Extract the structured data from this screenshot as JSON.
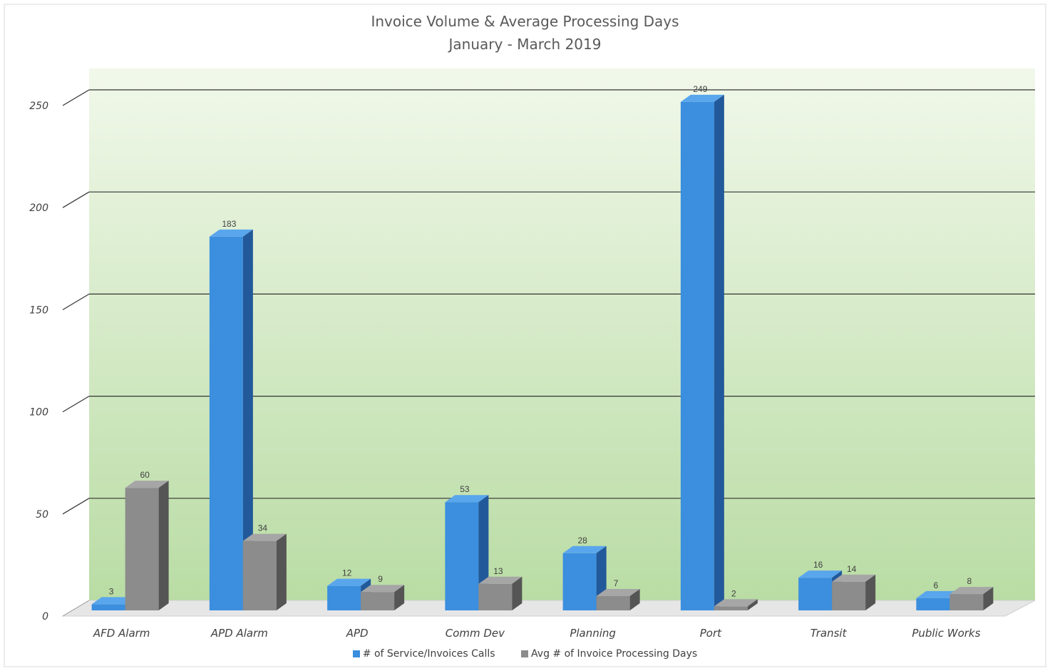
{
  "chart_data": {
    "type": "bar",
    "title": "Invoice Volume & Average Processing Days",
    "subtitle": "January  - March 2019",
    "categories": [
      "AFD Alarm",
      "APD Alarm",
      "APD",
      "Comm Dev",
      "Planning",
      "Port",
      "Transit",
      "Public Works"
    ],
    "series": [
      {
        "name": "# of Service/Invoices Calls",
        "values": [
          3,
          183,
          12,
          53,
          28,
          249,
          16,
          6
        ],
        "color": "#3b8fde"
      },
      {
        "name": "Avg # of Invoice Processing Days",
        "values": [
          60,
          34,
          9,
          13,
          7,
          2,
          14,
          8
        ],
        "color": "#8c8c8c"
      }
    ],
    "y_ticks": [
      "0",
      "50",
      "100",
      "150",
      "200",
      "250"
    ],
    "ylim": [
      0,
      250
    ],
    "grid": true,
    "legend_position": "bottom",
    "plot_background": "light green gradient"
  }
}
